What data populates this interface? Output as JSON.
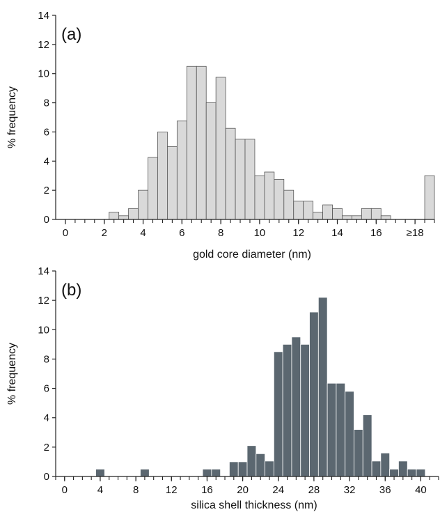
{
  "chart_data": [
    {
      "type": "bar",
      "panel_label": "(a)",
      "xlabel": "gold core diameter (nm)",
      "ylabel": "% frequency",
      "ylim": [
        0,
        14
      ],
      "yticks": [
        "0",
        "2",
        "4",
        "6",
        "8",
        "10",
        "12",
        "14"
      ],
      "xlim": [
        -0.5,
        19
      ],
      "xticks": [
        {
          "value": 0,
          "label": "0"
        },
        {
          "value": 2,
          "label": "2"
        },
        {
          "value": 4,
          "label": "4"
        },
        {
          "value": 6,
          "label": "6"
        },
        {
          "value": 8,
          "label": "8"
        },
        {
          "value": 10,
          "label": "10"
        },
        {
          "value": 12,
          "label": "12"
        },
        {
          "value": 14,
          "label": "14"
        },
        {
          "value": 16,
          "label": "16"
        },
        {
          "value": 18,
          "label": "≥18"
        }
      ],
      "bin_width": 0.5,
      "bar_color": "#d9d9d9",
      "bars": [
        {
          "x": 2.5,
          "value": 0.5
        },
        {
          "x": 3.0,
          "value": 0.25
        },
        {
          "x": 3.5,
          "value": 0.75
        },
        {
          "x": 4.0,
          "value": 2.0
        },
        {
          "x": 4.5,
          "value": 4.25
        },
        {
          "x": 5.0,
          "value": 6.0
        },
        {
          "x": 5.5,
          "value": 5.0
        },
        {
          "x": 6.0,
          "value": 6.75
        },
        {
          "x": 6.5,
          "value": 10.5
        },
        {
          "x": 7.0,
          "value": 10.5
        },
        {
          "x": 7.5,
          "value": 8.0
        },
        {
          "x": 8.0,
          "value": 9.75
        },
        {
          "x": 8.5,
          "value": 6.25
        },
        {
          "x": 9.0,
          "value": 5.5
        },
        {
          "x": 9.5,
          "value": 5.5
        },
        {
          "x": 10.0,
          "value": 3.0
        },
        {
          "x": 10.5,
          "value": 3.25
        },
        {
          "x": 11.0,
          "value": 2.75
        },
        {
          "x": 11.5,
          "value": 2.0
        },
        {
          "x": 12.0,
          "value": 1.25
        },
        {
          "x": 12.5,
          "value": 1.25
        },
        {
          "x": 13.0,
          "value": 0.5
        },
        {
          "x": 13.5,
          "value": 1.0
        },
        {
          "x": 14.0,
          "value": 0.75
        },
        {
          "x": 14.5,
          "value": 0.25
        },
        {
          "x": 15.0,
          "value": 0.25
        },
        {
          "x": 15.5,
          "value": 0.75
        },
        {
          "x": 16.0,
          "value": 0.75
        },
        {
          "x": 16.5,
          "value": 0.25
        },
        {
          "x": 18.75,
          "value": 3.0
        }
      ]
    },
    {
      "type": "bar",
      "panel_label": "(b)",
      "xlabel": "silica shell thickness (nm)",
      "ylabel": "% frequency",
      "ylim": [
        0,
        14
      ],
      "yticks": [
        "0",
        "2",
        "4",
        "6",
        "8",
        "10",
        "12",
        "14"
      ],
      "xlim": [
        -1,
        42
      ],
      "xticks": [
        {
          "value": 0,
          "label": "0"
        },
        {
          "value": 4,
          "label": "4"
        },
        {
          "value": 8,
          "label": "8"
        },
        {
          "value": 12,
          "label": "12"
        },
        {
          "value": 16,
          "label": "16"
        },
        {
          "value": 20,
          "label": "20"
        },
        {
          "value": 24,
          "label": "24"
        },
        {
          "value": 28,
          "label": "28"
        },
        {
          "value": 32,
          "label": "32"
        },
        {
          "value": 36,
          "label": "36"
        },
        {
          "value": 40,
          "label": "40"
        }
      ],
      "bin_width": 1,
      "bar_color": "#5b6770",
      "bars": [
        {
          "x": 4,
          "value": 0.5
        },
        {
          "x": 9,
          "value": 0.5
        },
        {
          "x": 16,
          "value": 0.5
        },
        {
          "x": 17,
          "value": 0.5
        },
        {
          "x": 19,
          "value": 1.0
        },
        {
          "x": 20,
          "value": 1.0
        },
        {
          "x": 21,
          "value": 2.1
        },
        {
          "x": 22,
          "value": 1.55
        },
        {
          "x": 23,
          "value": 1.05
        },
        {
          "x": 24,
          "value": 8.5
        },
        {
          "x": 25,
          "value": 9.0
        },
        {
          "x": 26,
          "value": 9.5
        },
        {
          "x": 27,
          "value": 9.0
        },
        {
          "x": 28,
          "value": 11.2
        },
        {
          "x": 29,
          "value": 12.2
        },
        {
          "x": 30,
          "value": 6.35
        },
        {
          "x": 31,
          "value": 6.35
        },
        {
          "x": 32,
          "value": 5.8
        },
        {
          "x": 33,
          "value": 3.2
        },
        {
          "x": 34,
          "value": 4.2
        },
        {
          "x": 35,
          "value": 1.05
        },
        {
          "x": 36,
          "value": 1.6
        },
        {
          "x": 37,
          "value": 0.5
        },
        {
          "x": 38,
          "value": 1.05
        },
        {
          "x": 39,
          "value": 0.5
        },
        {
          "x": 40,
          "value": 0.5
        }
      ]
    }
  ]
}
